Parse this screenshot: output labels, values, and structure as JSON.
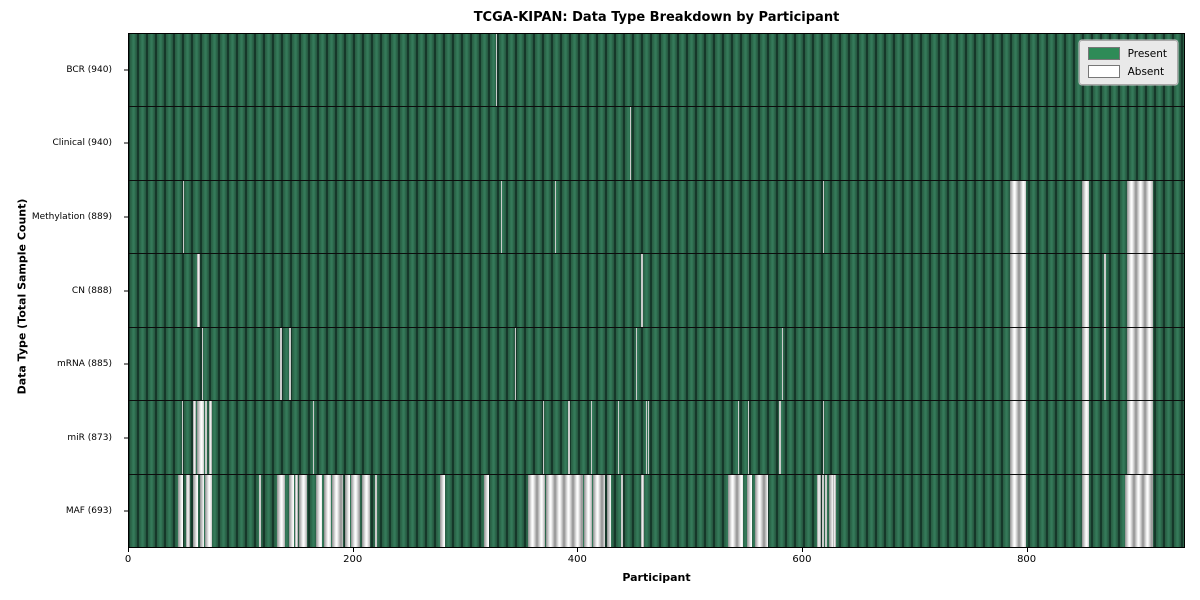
{
  "figure": {
    "title": "TCGA-KIPAN: Data Type Breakdown by Participant"
  },
  "chart_data": {
    "type": "heatmap",
    "title": "TCGA-KIPAN: Data Type Breakdown by Participant",
    "xlabel": "Participant",
    "ylabel": "Data Type (Total Sample Count)",
    "x_range": [
      0,
      941
    ],
    "x_ticks": [
      0,
      200,
      400,
      600,
      800
    ],
    "n_participants": 941,
    "grid": false,
    "colors": {
      "present": "#2e8b57",
      "absent": "#ffffff",
      "row_divider": "#000000"
    },
    "legend": {
      "position": "upper right",
      "entries": [
        {
          "label": "Present",
          "color": "#2e8b57"
        },
        {
          "label": "Absent",
          "color": "#ffffff"
        }
      ]
    },
    "rows": [
      {
        "label": "BCR (940)",
        "data_type": "BCR",
        "total_samples": 940,
        "absent_segments": [
          [
            327,
            328
          ]
        ]
      },
      {
        "label": "Clinical (940)",
        "data_type": "Clinical",
        "total_samples": 940,
        "absent_segments": [
          [
            447,
            448
          ]
        ]
      },
      {
        "label": "Methylation (889)",
        "data_type": "Methylation",
        "total_samples": 889,
        "absent_segments": [
          [
            48,
            49
          ],
          [
            332,
            333
          ],
          [
            380,
            381
          ],
          [
            619,
            620
          ],
          [
            786,
            800
          ],
          [
            850,
            856
          ],
          [
            890,
            913
          ]
        ]
      },
      {
        "label": "CN (888)",
        "data_type": "CN",
        "total_samples": 888,
        "absent_segments": [
          [
            61,
            63
          ],
          [
            457,
            458
          ],
          [
            786,
            800
          ],
          [
            850,
            856
          ],
          [
            870,
            871
          ],
          [
            890,
            913
          ]
        ]
      },
      {
        "label": "mRNA (885)",
        "data_type": "mRNA",
        "total_samples": 885,
        "absent_segments": [
          [
            65,
            66
          ],
          [
            135,
            136
          ],
          [
            143,
            144
          ],
          [
            344,
            345
          ],
          [
            452,
            453
          ],
          [
            582,
            583
          ],
          [
            786,
            800
          ],
          [
            850,
            856
          ],
          [
            870,
            871
          ],
          [
            890,
            913
          ]
        ]
      },
      {
        "label": "miR (873)",
        "data_type": "miR",
        "total_samples": 873,
        "absent_segments": [
          [
            47,
            48
          ],
          [
            57,
            60
          ],
          [
            61,
            67
          ],
          [
            68,
            70
          ],
          [
            71,
            74
          ],
          [
            164,
            165
          ],
          [
            369,
            370
          ],
          [
            392,
            393
          ],
          [
            412,
            413
          ],
          [
            436,
            437
          ],
          [
            461,
            462
          ],
          [
            463,
            464
          ],
          [
            543,
            544
          ],
          [
            552,
            553
          ],
          [
            580,
            581
          ],
          [
            619,
            620
          ],
          [
            786,
            800
          ],
          [
            850,
            856
          ],
          [
            890,
            913
          ]
        ]
      },
      {
        "label": "MAF (693)",
        "data_type": "MAF",
        "total_samples": 693,
        "absent_segments": [
          [
            44,
            48
          ],
          [
            51,
            54
          ],
          [
            57,
            62
          ],
          [
            63,
            67
          ],
          [
            68,
            74
          ],
          [
            116,
            118
          ],
          [
            132,
            139
          ],
          [
            143,
            147
          ],
          [
            148,
            151
          ],
          [
            152,
            159
          ],
          [
            167,
            172
          ],
          [
            174,
            180
          ],
          [
            181,
            191
          ],
          [
            193,
            197
          ],
          [
            198,
            206
          ],
          [
            208,
            215
          ],
          [
            219,
            221
          ],
          [
            277,
            282
          ],
          [
            317,
            321
          ],
          [
            356,
            371
          ],
          [
            372,
            405
          ],
          [
            406,
            413
          ],
          [
            414,
            425
          ],
          [
            426,
            430
          ],
          [
            439,
            441
          ],
          [
            457,
            459
          ],
          [
            534,
            548
          ],
          [
            551,
            556
          ],
          [
            558,
            570
          ],
          [
            614,
            617
          ],
          [
            618,
            620
          ],
          [
            621,
            623
          ],
          [
            624,
            628
          ],
          [
            628,
            631
          ],
          [
            786,
            800
          ],
          [
            850,
            856
          ],
          [
            888,
            913
          ]
        ]
      }
    ]
  }
}
